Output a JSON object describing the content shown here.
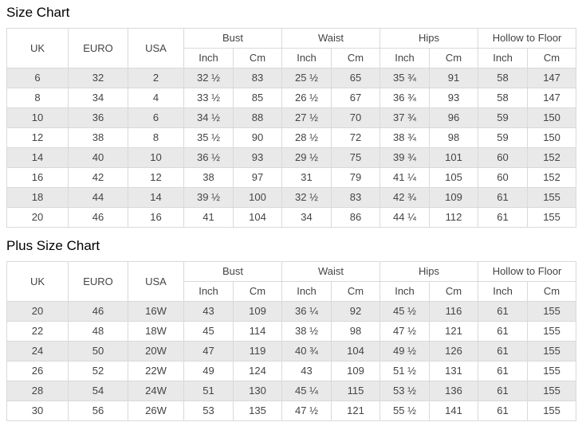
{
  "colors": {
    "row_alt_background": "#e9e9e9",
    "row_background": "#ffffff",
    "border": "#d9d9d9",
    "cell_text": "#444444",
    "title_text": "#000000"
  },
  "tables": [
    {
      "title": "Size Chart",
      "headers": {
        "uk": "UK",
        "euro": "EURO",
        "usa": "USA",
        "groups": [
          "Bust",
          "Waist",
          "Hips",
          "Hollow to Floor"
        ],
        "units": [
          "Inch",
          "Cm"
        ]
      },
      "rows": [
        [
          "6",
          "32",
          "2",
          "32 ½",
          "83",
          "25 ½",
          "65",
          "35 ¾",
          "91",
          "58",
          "147"
        ],
        [
          "8",
          "34",
          "4",
          "33 ½",
          "85",
          "26 ½",
          "67",
          "36 ¾",
          "93",
          "58",
          "147"
        ],
        [
          "10",
          "36",
          "6",
          "34 ½",
          "88",
          "27 ½",
          "70",
          "37 ¾",
          "96",
          "59",
          "150"
        ],
        [
          "12",
          "38",
          "8",
          "35 ½",
          "90",
          "28 ½",
          "72",
          "38 ¾",
          "98",
          "59",
          "150"
        ],
        [
          "14",
          "40",
          "10",
          "36 ½",
          "93",
          "29 ½",
          "75",
          "39 ¾",
          "101",
          "60",
          "152"
        ],
        [
          "16",
          "42",
          "12",
          "38",
          "97",
          "31",
          "79",
          "41 ¼",
          "105",
          "60",
          "152"
        ],
        [
          "18",
          "44",
          "14",
          "39 ½",
          "100",
          "32 ½",
          "83",
          "42 ¾",
          "109",
          "61",
          "155"
        ],
        [
          "20",
          "46",
          "16",
          "41",
          "104",
          "34",
          "86",
          "44 ¼",
          "112",
          "61",
          "155"
        ]
      ]
    },
    {
      "title": "Plus Size Chart",
      "headers": {
        "uk": "UK",
        "euro": "EURO",
        "usa": "USA",
        "groups": [
          "Bust",
          "Waist",
          "Hips",
          "Hollow to Floor"
        ],
        "units": [
          "Inch",
          "Cm"
        ]
      },
      "rows": [
        [
          "20",
          "46",
          "16W",
          "43",
          "109",
          "36 ¼",
          "92",
          "45 ½",
          "116",
          "61",
          "155"
        ],
        [
          "22",
          "48",
          "18W",
          "45",
          "114",
          "38 ½",
          "98",
          "47 ½",
          "121",
          "61",
          "155"
        ],
        [
          "24",
          "50",
          "20W",
          "47",
          "119",
          "40 ¾",
          "104",
          "49 ½",
          "126",
          "61",
          "155"
        ],
        [
          "26",
          "52",
          "22W",
          "49",
          "124",
          "43",
          "109",
          "51 ½",
          "131",
          "61",
          "155"
        ],
        [
          "28",
          "54",
          "24W",
          "51",
          "130",
          "45 ¼",
          "115",
          "53 ½",
          "136",
          "61",
          "155"
        ],
        [
          "30",
          "56",
          "26W",
          "53",
          "135",
          "47 ½",
          "121",
          "55 ½",
          "141",
          "61",
          "155"
        ]
      ]
    }
  ]
}
